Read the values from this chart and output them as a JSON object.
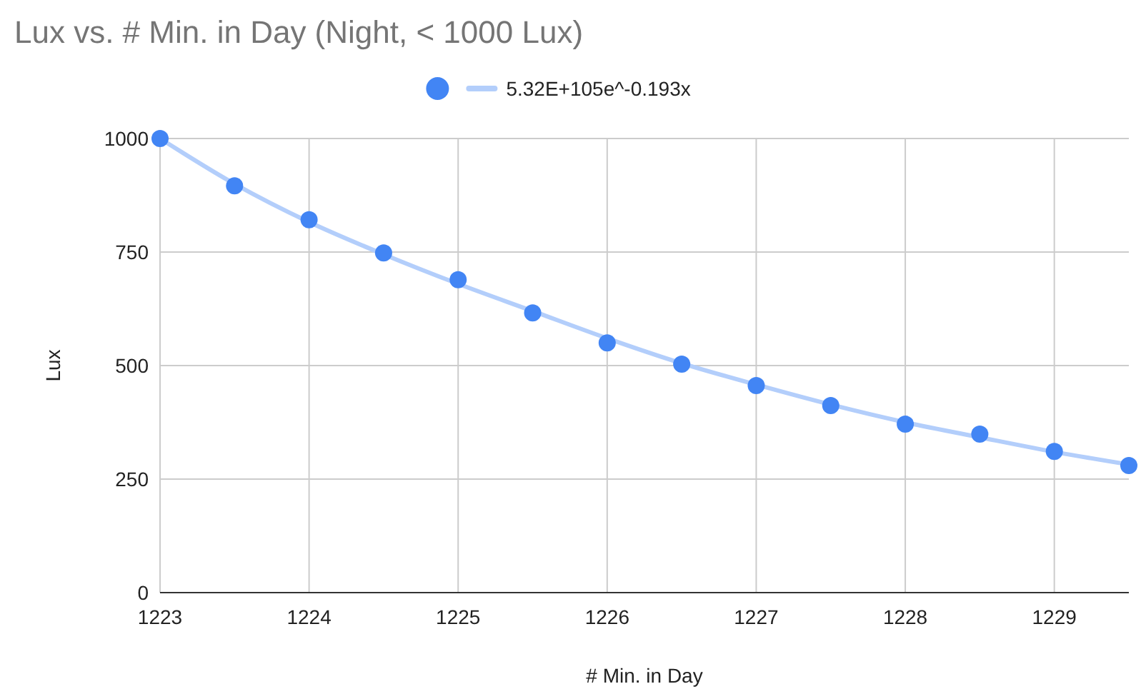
{
  "chart_data": {
    "type": "scatter",
    "title": "Lux vs. # Min. in Day (Night, < 1000 Lux)",
    "xlabel": "# Min. in Day",
    "ylabel": "Lux",
    "x": [
      1223,
      1223.5,
      1224,
      1224.5,
      1225,
      1225.5,
      1226,
      1226.5,
      1227,
      1227.5,
      1228,
      1228.5,
      1229,
      1229.5
    ],
    "series": [
      {
        "color": "#4285f4",
        "marker": "circle",
        "values": [
          1000,
          896,
          821,
          748,
          689,
          616,
          550,
          503,
          456,
          412,
          371,
          349,
          311,
          280
        ]
      },
      {
        "type": "line",
        "name": "5.32E+105e^-0.193x",
        "color": "#b3cefb",
        "x": [
          1223,
          1223.5,
          1224,
          1224.5,
          1225,
          1225.5,
          1226,
          1226.5,
          1227,
          1227.5,
          1228,
          1228.5,
          1229,
          1229.5
        ],
        "values": [
          1000,
          900,
          816,
          745,
          680,
          620,
          560,
          505,
          458,
          414,
          375,
          342,
          310,
          282
        ]
      }
    ],
    "xlim": [
      1223,
      1229.5
    ],
    "xticks": [
      1223,
      1224,
      1225,
      1226,
      1227,
      1228,
      1229
    ],
    "ylim": [
      0,
      1000
    ],
    "yticks": [
      0,
      250,
      500,
      750,
      1000
    ],
    "grid": true,
    "legend": "top"
  }
}
